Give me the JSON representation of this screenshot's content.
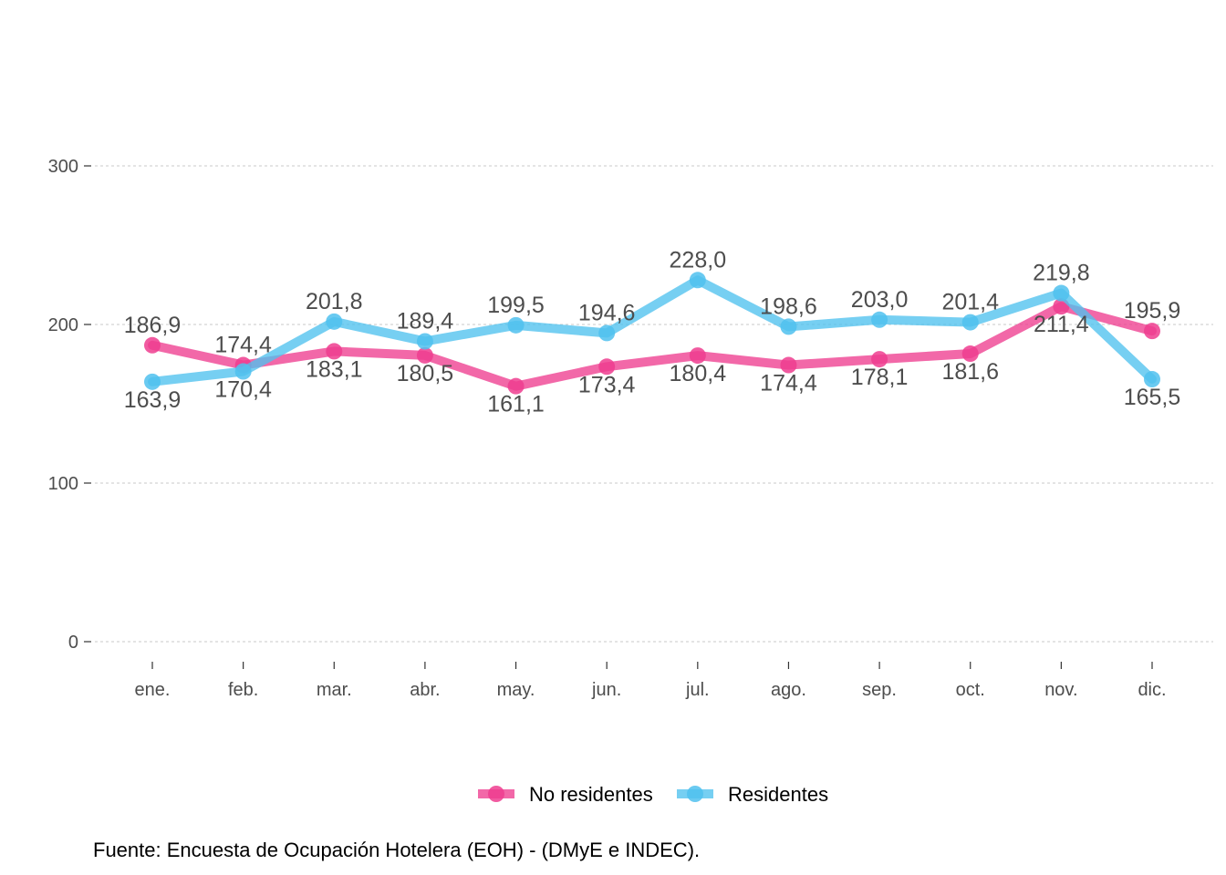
{
  "chart_data": {
    "type": "line",
    "categories": [
      "ene.",
      "feb.",
      "mar.",
      "abr.",
      "may.",
      "jun.",
      "jul.",
      "ago.",
      "sep.",
      "oct.",
      "nov.",
      "dic."
    ],
    "series": [
      {
        "name": "No residentes",
        "color": "#EE3D8F",
        "values": [
          186.9,
          174.4,
          183.1,
          180.5,
          161.1,
          173.4,
          180.4,
          174.4,
          178.1,
          181.6,
          211.4,
          195.9
        ],
        "labels": [
          "186,9",
          "174,4",
          "183,1",
          "180,5",
          "161,1",
          "173,4",
          "180,4",
          "174,4",
          "178,1",
          "181,6",
          "211,4",
          "195,9"
        ]
      },
      {
        "name": "Residentes",
        "color": "#50C1EE",
        "values": [
          163.9,
          170.4,
          201.8,
          189.4,
          199.5,
          194.6,
          228.0,
          198.6,
          203.0,
          201.4,
          219.8,
          165.5
        ],
        "labels": [
          "163,9",
          "170,4",
          "201,8",
          "189,4",
          "199,5",
          "194,6",
          "228,0",
          "198,6",
          "203,0",
          "201,4",
          "219,8",
          "165,5"
        ]
      }
    ],
    "ylim": [
      -20,
      350
    ],
    "yticks": [
      0,
      100,
      200,
      300
    ],
    "ytick_labels": [
      "0",
      "100",
      "200",
      "300"
    ],
    "grid": "horizontal dotted",
    "legend": "bottom",
    "title": "",
    "xlabel": "",
    "ylabel": ""
  },
  "source": "Fuente: Encuesta de Ocupación Hotelera (EOH) - (DMyE e INDEC)."
}
